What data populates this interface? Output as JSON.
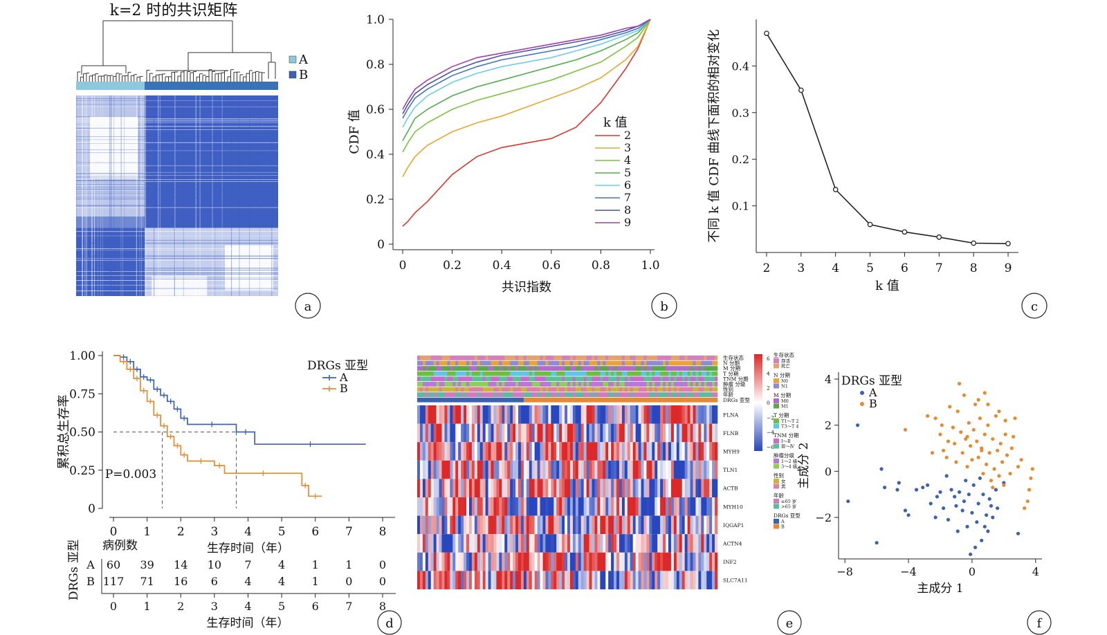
{
  "panels": {
    "a": {
      "title": "k=2 时的共识矩阵",
      "label": "a",
      "legend": [
        {
          "name": "A",
          "color": "#8ec8dc"
        },
        {
          "name": "B",
          "color": "#3a62b0"
        }
      ]
    },
    "b": {
      "label": "b"
    },
    "c": {
      "label": "c"
    },
    "d": {
      "label": "d",
      "risk_table_title": "病例数",
      "risk_table_ylabel": "DRGs 亚型",
      "risk_rows": [
        {
          "group": "A",
          "counts": [
            "60",
            "39",
            "14",
            "10",
            "7",
            "4",
            "1",
            "1",
            "0"
          ]
        },
        {
          "group": "B",
          "counts": [
            "117",
            "71",
            "16",
            "6",
            "4",
            "4",
            "1",
            "0",
            "0"
          ]
        }
      ],
      "risk_xticks": [
        "0",
        "1",
        "2",
        "3",
        "4",
        "5",
        "6",
        "7",
        "8"
      ],
      "risk_xlabel": "生存时间（年）"
    },
    "e": {
      "label": "e",
      "annotation_tracks": [
        "生存状态",
        "N 分期",
        "M 分期",
        "T 分期",
        "TNM 分期",
        "肿瘤 分级",
        "性别",
        "年龄",
        "DRGs 亚型"
      ],
      "genes": [
        "FLNA",
        "FLNB",
        "MYH9",
        "TLN1",
        "ACTB",
        "MYH10",
        "IQGAP1",
        "ACTN4",
        "INF2",
        "SLC7A11"
      ],
      "scale_ticks": [
        "6",
        "4",
        "2",
        "0",
        "−2",
        "−4",
        "−6"
      ],
      "legend_groups": [
        {
          "title": "生存状态",
          "items": [
            {
              "name": "存活",
              "color": "#d57fbe"
            },
            {
              "name": "死亡",
              "color": "#e3a36b"
            }
          ]
        },
        {
          "title": "N 分期",
          "items": [
            {
              "name": "N0",
              "color": "#e6a43a"
            },
            {
              "name": "N1",
              "color": "#8d8bd4"
            }
          ]
        },
        {
          "title": "M 分期",
          "items": [
            {
              "name": "M0",
              "color": "#b06cc8"
            },
            {
              "name": "M1",
              "color": "#5aa84a"
            }
          ]
        },
        {
          "title": "T 分期",
          "items": [
            {
              "name": "T1～T 2",
              "color": "#6fbf3f"
            },
            {
              "name": "T3～T 4",
              "color": "#5fc7e6"
            }
          ]
        },
        {
          "title": "TNM 分期",
          "items": [
            {
              "name": "Ⅰ～Ⅱ",
              "color": "#c86ad0"
            },
            {
              "name": "Ⅲ～Ⅳ",
              "color": "#5ac09a"
            }
          ]
        },
        {
          "title": "肿瘤分级",
          "items": [
            {
              "name": "1～2 级",
              "color": "#b978d8"
            },
            {
              "name": "3～4 级",
              "color": "#8fce5b"
            }
          ]
        },
        {
          "title": "性别",
          "items": [
            {
              "name": "女",
              "color": "#c9b53a"
            },
            {
              "name": "男",
              "color": "#e07fa8"
            }
          ]
        },
        {
          "title": "年龄",
          "items": [
            {
              "name": "≤65 岁",
              "color": "#d07ac0"
            },
            {
              "name": ">65 岁",
              "color": "#5fb8a0"
            }
          ]
        },
        {
          "title": "DRGs 亚型",
          "items": [
            {
              "name": "A",
              "color": "#3a62b0"
            },
            {
              "name": "B",
              "color": "#e58a2e"
            }
          ]
        }
      ]
    },
    "f": {
      "label": "f"
    }
  },
  "chart_data": [
    {
      "panel": "a",
      "type": "heatmap",
      "title": "k=2 时的共识矩阵",
      "legend": [
        "A",
        "B"
      ],
      "cluster_fraction": {
        "A": 0.34,
        "B": 0.66
      },
      "colors": {
        "A": "#8ec8dc",
        "B": "#3a62b0",
        "matrix": "#3f5fc2"
      }
    },
    {
      "panel": "b",
      "type": "line",
      "xlabel": "共识指数",
      "ylabel": "CDF 值",
      "xlim": [
        0,
        1
      ],
      "ylim": [
        0,
        1
      ],
      "xticks": [
        "0",
        "0.2",
        "0.4",
        "0.6",
        "0.8",
        "1.0"
      ],
      "yticks": [
        "0",
        "0.2",
        "0.4",
        "0.6",
        "0.8",
        "1.0"
      ],
      "legend_title": "k 值",
      "x": [
        0.0,
        0.02,
        0.05,
        0.1,
        0.2,
        0.3,
        0.4,
        0.5,
        0.6,
        0.7,
        0.8,
        0.9,
        0.95,
        1.0
      ],
      "series": [
        {
          "name": "2",
          "color": "#e0342b",
          "values": [
            0.08,
            0.1,
            0.14,
            0.19,
            0.31,
            0.39,
            0.43,
            0.45,
            0.47,
            0.52,
            0.63,
            0.78,
            0.87,
            1.0
          ]
        },
        {
          "name": "3",
          "color": "#e8a62a",
          "values": [
            0.3,
            0.34,
            0.39,
            0.44,
            0.5,
            0.54,
            0.57,
            0.61,
            0.65,
            0.69,
            0.74,
            0.82,
            0.88,
            1.0
          ]
        },
        {
          "name": "4",
          "color": "#7cc23c",
          "values": [
            0.41,
            0.45,
            0.5,
            0.54,
            0.6,
            0.64,
            0.67,
            0.7,
            0.73,
            0.77,
            0.81,
            0.88,
            0.92,
            1.0
          ]
        },
        {
          "name": "5",
          "color": "#4fae4a",
          "values": [
            0.46,
            0.5,
            0.56,
            0.6,
            0.66,
            0.7,
            0.73,
            0.76,
            0.79,
            0.82,
            0.86,
            0.91,
            0.94,
            1.0
          ]
        },
        {
          "name": "6",
          "color": "#6ccde6",
          "values": [
            0.52,
            0.56,
            0.61,
            0.66,
            0.72,
            0.76,
            0.79,
            0.81,
            0.83,
            0.86,
            0.89,
            0.93,
            0.95,
            1.0
          ]
        },
        {
          "name": "7",
          "color": "#3f74c5",
          "values": [
            0.56,
            0.6,
            0.65,
            0.69,
            0.75,
            0.79,
            0.82,
            0.84,
            0.86,
            0.88,
            0.91,
            0.94,
            0.96,
            1.0
          ]
        },
        {
          "name": "8",
          "color": "#4d4fa5",
          "values": [
            0.58,
            0.62,
            0.67,
            0.71,
            0.77,
            0.81,
            0.84,
            0.86,
            0.88,
            0.9,
            0.92,
            0.95,
            0.97,
            1.0
          ]
        },
        {
          "name": "9",
          "color": "#a23fae",
          "values": [
            0.6,
            0.64,
            0.69,
            0.73,
            0.79,
            0.83,
            0.85,
            0.87,
            0.89,
            0.91,
            0.93,
            0.96,
            0.97,
            1.0
          ]
        }
      ]
    },
    {
      "panel": "c",
      "type": "line",
      "xlabel": "k 值",
      "ylabel": "不同 k 值 CDF 曲线下面积的相对变化",
      "xlim": [
        1.7,
        9.3
      ],
      "ylim": [
        0,
        0.5
      ],
      "xticks": [
        "2",
        "3",
        "4",
        "5",
        "6",
        "7",
        "8",
        "9"
      ],
      "yticks": [
        "0.1",
        "0.2",
        "0.3",
        "0.4"
      ],
      "x": [
        2,
        3,
        4,
        5,
        6,
        7,
        8,
        9
      ],
      "values": [
        0.47,
        0.348,
        0.135,
        0.06,
        0.044,
        0.033,
        0.02,
        0.019
      ]
    },
    {
      "panel": "d",
      "type": "line",
      "xlabel": "生存时间（年）",
      "ylabel": "累积总生存率",
      "xlim": [
        0,
        8
      ],
      "ylim": [
        0,
        1
      ],
      "xticks": [
        "0",
        "1",
        "2",
        "3",
        "4",
        "5",
        "6",
        "7",
        "8"
      ],
      "yticks": [
        "0",
        "0.25",
        "0.50",
        "0.75",
        "1.00"
      ],
      "legend_title": "DRGs 亚型",
      "annotation": "P=0.003",
      "median_survival": {
        "A": 3.65,
        "B": 1.45
      },
      "series": [
        {
          "name": "A",
          "color": "#3a62b0",
          "x": [
            0,
            0.2,
            0.4,
            0.6,
            0.8,
            1.0,
            1.2,
            1.4,
            1.6,
            1.8,
            2.0,
            2.2,
            3.65,
            4.2,
            7.5
          ],
          "values": [
            1.0,
            0.99,
            0.96,
            0.91,
            0.86,
            0.84,
            0.78,
            0.74,
            0.7,
            0.65,
            0.59,
            0.55,
            0.5,
            0.42,
            0.42
          ]
        },
        {
          "name": "B",
          "color": "#e58a2e",
          "x": [
            0,
            0.2,
            0.4,
            0.6,
            0.8,
            1.0,
            1.2,
            1.4,
            1.6,
            1.8,
            2.0,
            2.2,
            3.0,
            3.3,
            5.6,
            5.8,
            6.2
          ],
          "values": [
            1.0,
            0.96,
            0.91,
            0.85,
            0.77,
            0.7,
            0.61,
            0.54,
            0.47,
            0.41,
            0.35,
            0.31,
            0.28,
            0.23,
            0.15,
            0.08,
            0.08
          ]
        }
      ]
    },
    {
      "panel": "f",
      "type": "scatter",
      "xlabel": "主成分 1",
      "ylabel": "主成分 2",
      "xlim": [
        -8.4,
        4.4
      ],
      "ylim": [
        -3.8,
        4.3
      ],
      "xticks": [
        "−8",
        "−4",
        "0",
        "4"
      ],
      "yticks": [
        "−2",
        "0",
        "2",
        "4"
      ],
      "legend_title": "DRGs 亚型",
      "series": [
        {
          "name": "A",
          "color": "#3a62b0",
          "points": [
            [
              -7.2,
              2.0
            ],
            [
              -7.8,
              -1.3
            ],
            [
              -6.0,
              -3.1
            ],
            [
              -5.7,
              0.1
            ],
            [
              -5.5,
              -0.7
            ],
            [
              -4.7,
              -0.8
            ],
            [
              -4.6,
              -0.5
            ],
            [
              -4.2,
              -1.7
            ],
            [
              -4.0,
              -1.9
            ],
            [
              -3.5,
              -0.8
            ],
            [
              -3.1,
              -0.7
            ],
            [
              -2.8,
              -0.6
            ],
            [
              -2.6,
              -1.4
            ],
            [
              -2.3,
              -2.0
            ],
            [
              -2.0,
              -0.9
            ],
            [
              -1.8,
              -1.6
            ],
            [
              -1.5,
              -2.1
            ],
            [
              -1.3,
              -0.8
            ],
            [
              -1.1,
              -1.1
            ],
            [
              -0.9,
              -2.6
            ],
            [
              -0.8,
              -0.9
            ],
            [
              -0.6,
              -1.7
            ],
            [
              -0.5,
              -1.3
            ],
            [
              -0.3,
              -2.4
            ],
            [
              -0.2,
              -1.0
            ],
            [
              0.0,
              -1.8
            ],
            [
              0.1,
              -0.6
            ],
            [
              0.3,
              -2.2
            ],
            [
              0.4,
              -1.4
            ],
            [
              0.6,
              -3.0
            ],
            [
              0.7,
              -1.0
            ],
            [
              0.9,
              -1.9
            ],
            [
              1.0,
              -2.6
            ],
            [
              1.1,
              -1.2
            ],
            [
              1.3,
              -2.0
            ],
            [
              1.5,
              -0.8
            ],
            [
              1.6,
              -1.6
            ],
            [
              2.0,
              -0.5
            ],
            [
              -1.6,
              -0.2
            ],
            [
              -0.4,
              -0.4
            ],
            [
              0.2,
              -3.3
            ],
            [
              0.8,
              -2.4
            ],
            [
              -2.2,
              -1.1
            ],
            [
              -1.0,
              -1.5
            ],
            [
              0.5,
              -0.3
            ],
            [
              2.9,
              -2.7
            ],
            [
              -0.1,
              -3.6
            ],
            [
              1.2,
              -1.5
            ]
          ]
        },
        {
          "name": "B",
          "color": "#e58a2e",
          "points": [
            [
              -4.2,
              1.8
            ],
            [
              -2.8,
              2.4
            ],
            [
              -2.3,
              2.3
            ],
            [
              -2.0,
              1.6
            ],
            [
              -1.8,
              0.9
            ],
            [
              -1.6,
              0.6
            ],
            [
              -1.4,
              2.8
            ],
            [
              -1.2,
              1.9
            ],
            [
              -1.1,
              1.2
            ],
            [
              -1.0,
              0.4
            ],
            [
              -0.9,
              2.6
            ],
            [
              -0.7,
              1.7
            ],
            [
              -0.6,
              0.8
            ],
            [
              -0.5,
              3.3
            ],
            [
              -0.4,
              1.4
            ],
            [
              -0.3,
              0.2
            ],
            [
              -0.2,
              2.1
            ],
            [
              -0.1,
              1.1
            ],
            [
              0.0,
              0.5
            ],
            [
              0.1,
              1.8
            ],
            [
              0.2,
              2.9
            ],
            [
              0.3,
              1.3
            ],
            [
              0.4,
              0.6
            ],
            [
              0.5,
              2.3
            ],
            [
              0.6,
              1.0
            ],
            [
              0.7,
              -0.1
            ],
            [
              0.8,
              1.6
            ],
            [
              0.9,
              0.3
            ],
            [
              1.0,
              2.0
            ],
            [
              1.1,
              0.8
            ],
            [
              1.2,
              -0.4
            ],
            [
              1.3,
              1.4
            ],
            [
              1.4,
              0.1
            ],
            [
              1.5,
              2.4
            ],
            [
              1.6,
              0.9
            ],
            [
              1.7,
              -0.2
            ],
            [
              1.8,
              1.2
            ],
            [
              1.9,
              0.4
            ],
            [
              2.0,
              -0.6
            ],
            [
              2.1,
              1.6
            ],
            [
              2.2,
              0.7
            ],
            [
              2.4,
              -0.1
            ],
            [
              2.5,
              1.0
            ],
            [
              2.7,
              2.3
            ],
            [
              2.9,
              0.2
            ],
            [
              3.1,
              0.5
            ],
            [
              3.3,
              -1.6
            ],
            [
              3.5,
              -1.3
            ],
            [
              3.6,
              -0.8
            ],
            [
              3.7,
              -0.3
            ],
            [
              3.8,
              0.1
            ],
            [
              -1.9,
              2.0
            ],
            [
              -0.8,
              3.8
            ],
            [
              0.4,
              3.1
            ],
            [
              1.0,
              2.9
            ],
            [
              2.1,
              2.2
            ],
            [
              -0.3,
              1.5
            ],
            [
              0.6,
              0.9
            ],
            [
              1.3,
              -0.7
            ],
            [
              -1.5,
              1.3
            ],
            [
              0.8,
              3.4
            ],
            [
              1.7,
              2.6
            ],
            [
              -2.5,
              0.8
            ],
            [
              2.6,
              1.5
            ]
          ]
        }
      ]
    }
  ]
}
